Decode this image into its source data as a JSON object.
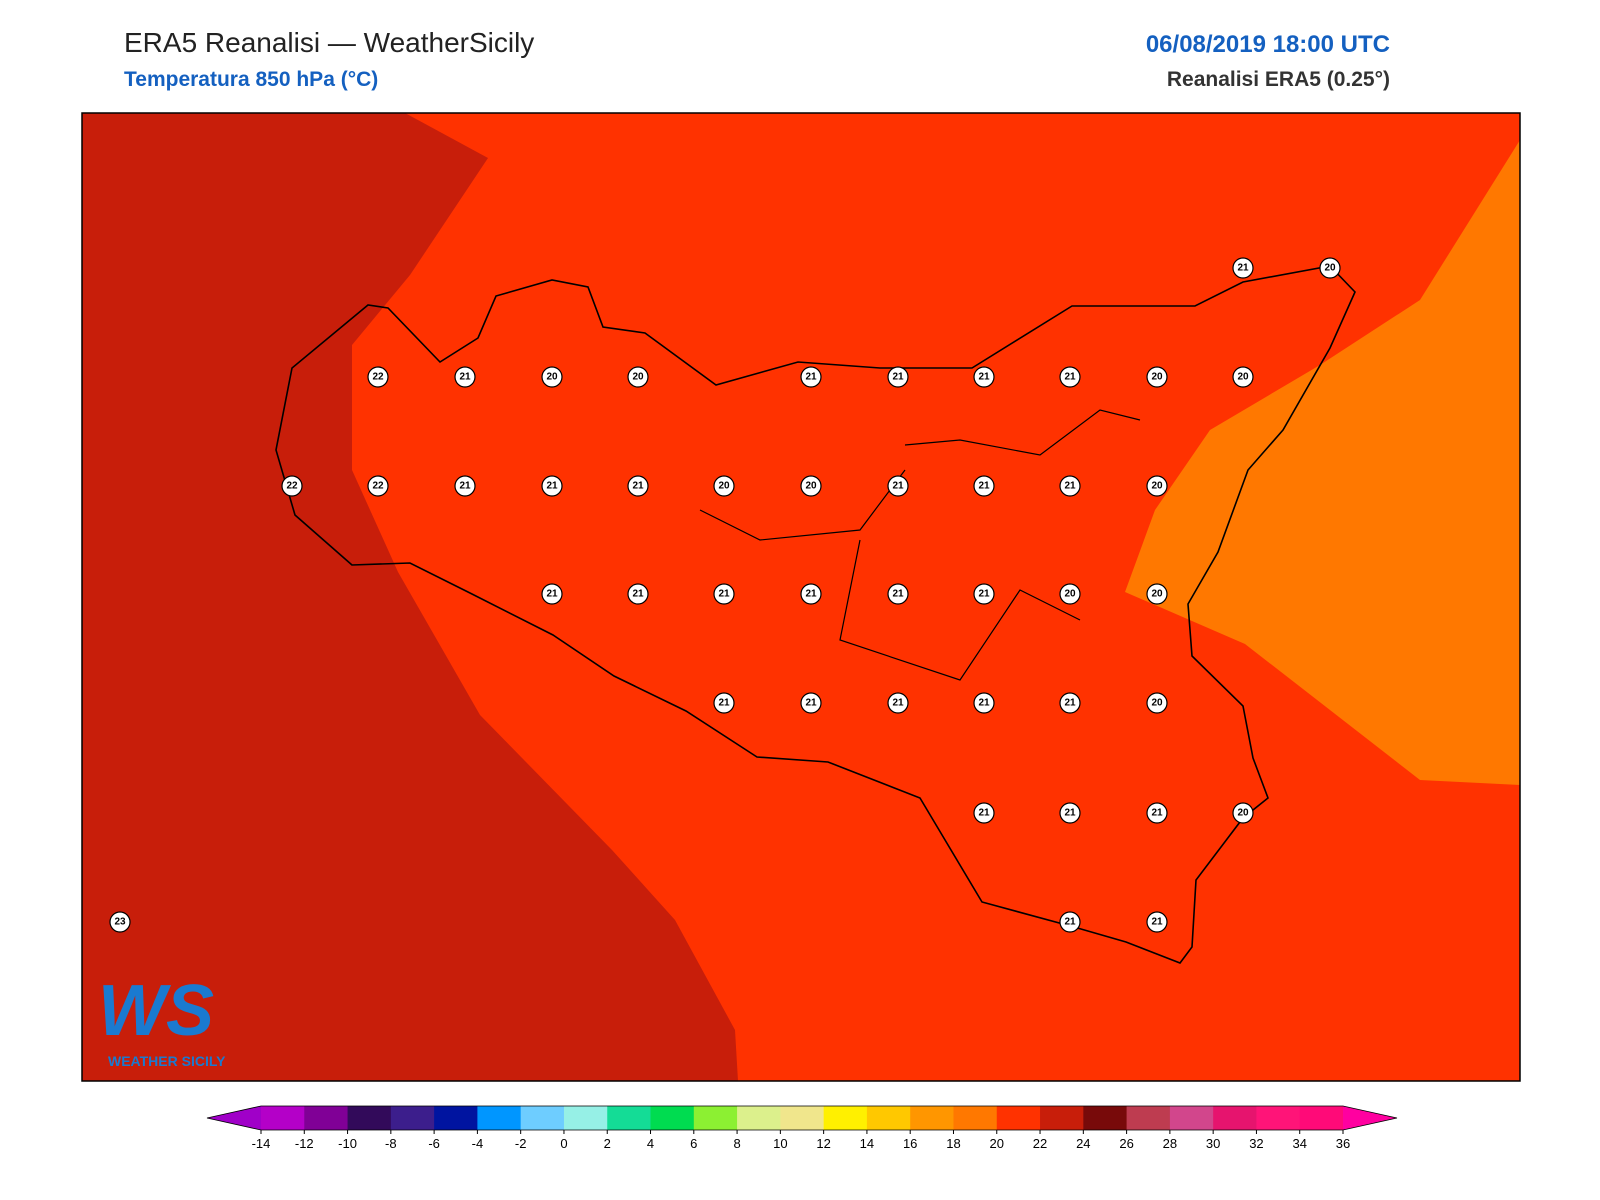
{
  "header": {
    "title": "ERA5 Reanalisi — WeatherSicily",
    "subtitle": "Temperatura 850 hPa (°C)",
    "datetime": "06/08/2019 18:00 UTC",
    "source": "Reanalisi ERA5 (0.25°)"
  },
  "points": [
    21,
    20,
    22,
    21,
    20,
    20,
    21,
    21,
    21,
    21,
    20,
    20,
    22,
    22,
    21,
    21,
    21,
    20,
    20,
    21,
    21,
    21,
    20,
    21,
    21,
    21,
    21,
    21,
    21,
    20,
    20,
    21,
    21,
    21,
    21,
    21,
    20,
    21,
    21,
    21,
    20,
    23,
    21,
    21
  ],
  "logo": {
    "mark": "WS",
    "caption": "WEATHER SICILY"
  },
  "colorbar": {
    "ticks": [
      -14,
      -12,
      -10,
      -8,
      -6,
      -4,
      -2,
      0,
      2,
      4,
      6,
      8,
      10,
      12,
      14,
      16,
      18,
      20,
      22,
      24,
      26,
      28,
      30,
      32,
      34,
      36
    ],
    "colors": [
      "#b400c8",
      "#800096",
      "#320a5a",
      "#3c1e8c",
      "#0014a0",
      "#0096ff",
      "#6ecdff",
      "#96f0e6",
      "#14dc96",
      "#00dc50",
      "#8cf032",
      "#dcf08c",
      "#f0e68c",
      "#fff000",
      "#ffc800",
      "#ff9600",
      "#ff7800",
      "#ff3200",
      "#c81e0a",
      "#780a0a",
      "#be3c50",
      "#d2468c",
      "#e6146e",
      "#ff1478",
      "#ff0a78"
    ],
    "under": "#a000c8",
    "over": "#ff00a0"
  }
}
